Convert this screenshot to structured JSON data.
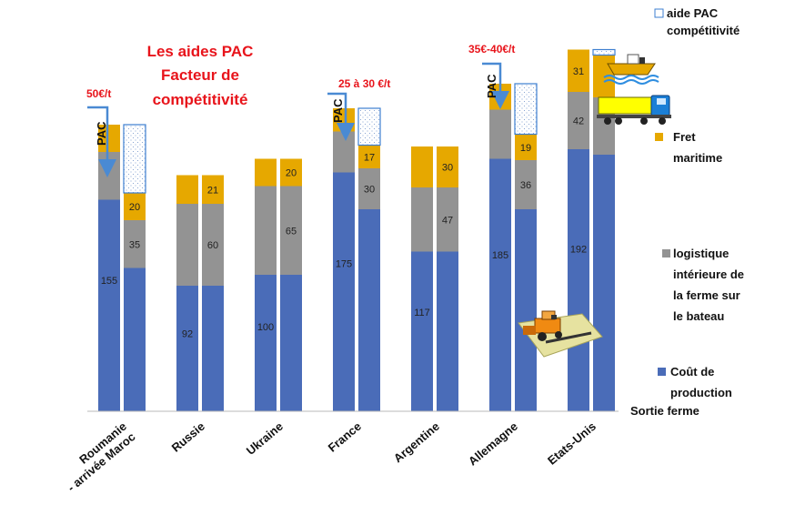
{
  "title_lines": [
    "Les aides PAC",
    "Facteur de",
    "compétitivité"
  ],
  "colors": {
    "production": "#4a6cb8",
    "logistique": "#939393",
    "fret": "#e6a800",
    "aide_border": "#3e7fd0",
    "axis": "#b8b8b8",
    "annotation": "#e8141b",
    "arrow": "#4a8ad3"
  },
  "annotations": [
    {
      "text": "50€/t"
    },
    {
      "text": "25 à 30 €/t"
    },
    {
      "text": "35€-40€/t"
    }
  ],
  "pac_label": "PAC",
  "legend": [
    {
      "key": "aide",
      "lines": [
        "aide PAC",
        "compétitivité"
      ],
      "color": "#ffffff"
    },
    {
      "key": "fret",
      "lines": [
        "Fret",
        "maritime"
      ],
      "color": "#e6a800"
    },
    {
      "key": "logistique",
      "lines": [
        "logistique",
        "intérieure de",
        "la ferme sur",
        "le bateau"
      ],
      "color": "#939393"
    },
    {
      "key": "production",
      "lines": [
        "Coût de",
        "production"
      ],
      "color": "#4a6cb8"
    }
  ],
  "extra_label": "Sortie ferme",
  "icons": [
    "ship-icon",
    "truck-icon",
    "harvester-icon"
  ],
  "chart_data": {
    "type": "bar",
    "stacked": true,
    "ylim": [
      0,
      280
    ],
    "categories": [
      {
        "label_lines": [
          "Roumanie",
          "- arrivée Maroc"
        ]
      },
      {
        "label_lines": [
          "Russie"
        ]
      },
      {
        "label_lines": [
          "Ukraine"
        ]
      },
      {
        "label_lines": [
          "France"
        ]
      },
      {
        "label_lines": [
          "Argentine"
        ]
      },
      {
        "label_lines": [
          "Allemagne"
        ]
      },
      {
        "label_lines": [
          "Etats-Unis"
        ]
      }
    ],
    "groups": [
      {
        "bars": [
          {
            "production": 155,
            "logistique": 35,
            "fret": 20,
            "aide": 0,
            "show_labels": true
          },
          {
            "production": 105,
            "logistique": 35,
            "fret": 20,
            "aide": 50,
            "show_labels": false,
            "label_override": {
              "logistique": "35",
              "fret": "20"
            }
          }
        ]
      },
      {
        "bars": [
          {
            "production": 92,
            "logistique": 60,
            "fret": 21,
            "aide": 0,
            "show_labels": true
          },
          {
            "production": 92,
            "logistique": 60,
            "fret": 21,
            "aide": 0,
            "show_labels": true
          }
        ]
      },
      {
        "bars": [
          {
            "production": 100,
            "logistique": 65,
            "fret": 20,
            "aide": 0,
            "show_labels": true
          },
          {
            "production": 100,
            "logistique": 65,
            "fret": 20,
            "aide": 0,
            "show_labels": true
          }
        ]
      },
      {
        "bars": [
          {
            "production": 175,
            "logistique": 30,
            "fret": 17,
            "aide": 0,
            "show_labels": true
          },
          {
            "production": 148,
            "logistique": 30,
            "fret": 17,
            "aide": 27,
            "show_labels": false,
            "label_override": {
              "logistique": "30",
              "fret": "17"
            }
          }
        ]
      },
      {
        "bars": [
          {
            "production": 117,
            "logistique": 47,
            "fret": 30,
            "aide": 0,
            "show_labels": true
          },
          {
            "production": 117,
            "logistique": 47,
            "fret": 30,
            "aide": 0,
            "show_labels": true
          }
        ]
      },
      {
        "bars": [
          {
            "production": 185,
            "logistique": 36,
            "fret": 19,
            "aide": 0,
            "show_labels": true
          },
          {
            "production": 148,
            "logistique": 36,
            "fret": 19,
            "aide": 37,
            "show_labels": false,
            "label_override": {
              "logistique": "36",
              "fret": "19"
            }
          }
        ]
      },
      {
        "bars": [
          {
            "production": 192,
            "logistique": 42,
            "fret": 31,
            "aide": 0,
            "show_labels": true
          },
          {
            "production": 188,
            "logistique": 42,
            "fret": 31,
            "aide": 4,
            "show_labels": false
          }
        ]
      }
    ],
    "segment_labels": [
      {
        "group": 0,
        "bar": 0,
        "production": "155"
      },
      {
        "group": 0,
        "bar": 1,
        "logistique": "35",
        "fret": "20"
      },
      {
        "group": 1,
        "bar": 0,
        "production": "92"
      },
      {
        "group": 1,
        "bar": 1,
        "logistique": "60",
        "fret": "21"
      },
      {
        "group": 2,
        "bar": 0,
        "production": "100"
      },
      {
        "group": 2,
        "bar": 1,
        "logistique": "65",
        "fret": "20"
      },
      {
        "group": 3,
        "bar": 0,
        "production": "175"
      },
      {
        "group": 3,
        "bar": 1,
        "logistique": "30",
        "fret": "17"
      },
      {
        "group": 4,
        "bar": 0,
        "production": "117"
      },
      {
        "group": 4,
        "bar": 1,
        "logistique": "47",
        "fret": "30"
      },
      {
        "group": 5,
        "bar": 0,
        "production": "185"
      },
      {
        "group": 5,
        "bar": 1,
        "logistique": "36",
        "fret": "19"
      },
      {
        "group": 6,
        "bar": 0,
        "production": "192",
        "logistique": "42",
        "fret": "31"
      }
    ]
  }
}
